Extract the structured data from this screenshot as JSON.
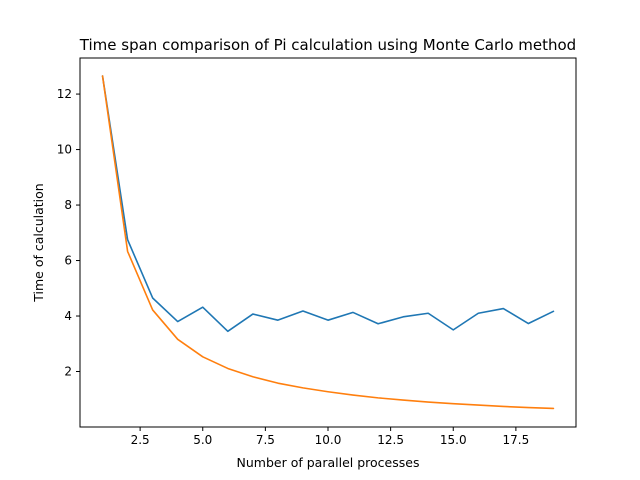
{
  "chart_data": {
    "type": "line",
    "title": "Time span comparison of Pi calculation using Monte Carlo method",
    "xlabel": "Number of parallel processes",
    "ylabel": "Time of calculation",
    "xlim": [
      0.1,
      19.9
    ],
    "ylim": [
      0.0,
      13.3
    ],
    "xticks": [
      2.5,
      5.0,
      7.5,
      10.0,
      12.5,
      15.0,
      17.5
    ],
    "xtick_labels": [
      "2.5",
      "5.0",
      "7.5",
      "10.0",
      "12.5",
      "15.0",
      "17.5"
    ],
    "yticks": [
      2,
      4,
      6,
      8,
      10,
      12
    ],
    "ytick_labels": [
      "2",
      "4",
      "6",
      "8",
      "10",
      "12"
    ],
    "grid": false,
    "legend": "none",
    "x": [
      1,
      2,
      3,
      4,
      5,
      6,
      7,
      8,
      9,
      10,
      11,
      12,
      13,
      14,
      15,
      16,
      17,
      18,
      19
    ],
    "series": [
      {
        "color": "#1f77b4",
        "values": [
          12.65,
          6.75,
          4.65,
          3.8,
          4.32,
          3.45,
          4.07,
          3.85,
          4.18,
          3.85,
          4.13,
          3.72,
          3.97,
          4.1,
          3.5,
          4.1,
          4.27,
          3.73,
          4.17
        ]
      },
      {
        "color": "#ff7f0e",
        "values": [
          12.65,
          6.33,
          4.22,
          3.16,
          2.53,
          2.11,
          1.81,
          1.58,
          1.41,
          1.27,
          1.15,
          1.05,
          0.97,
          0.9,
          0.84,
          0.79,
          0.74,
          0.7,
          0.67
        ]
      }
    ]
  }
}
